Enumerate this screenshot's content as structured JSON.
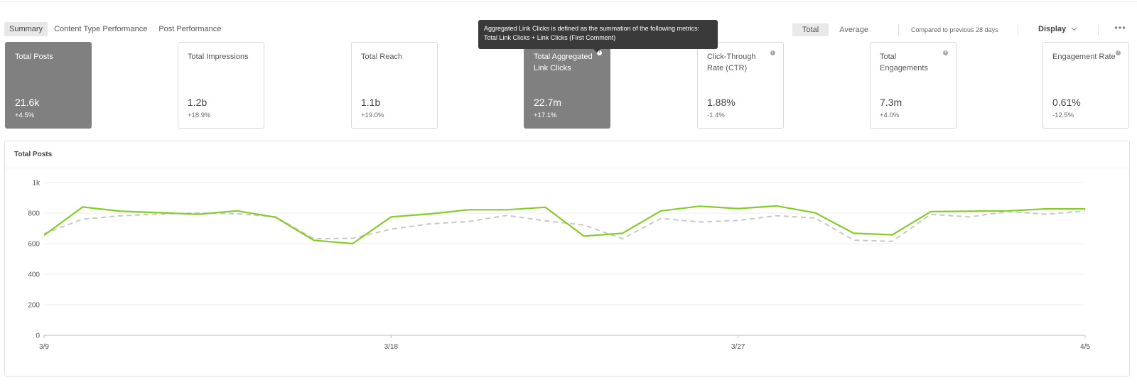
{
  "view_tabs": [
    "Summary",
    "Content Type Performance",
    "Post Performance"
  ],
  "controls": {
    "total_label": "Total",
    "average_label": "Average",
    "compare_label": "Compared to previous 28 days",
    "display_label": "Display"
  },
  "tooltip": {
    "line1": "Aggregated Link Clicks is defined as the summation of the following metrics:",
    "line2": "Total Link Clicks + Link Clicks (First Comment)"
  },
  "cards": [
    {
      "label": "Total Posts",
      "value": "21.6k",
      "change": "+4.5%",
      "selected": true,
      "info": false
    },
    {
      "label": "Total Impressions",
      "value": "1.2b",
      "change": "+18.9%",
      "selected": false,
      "info": false
    },
    {
      "label": "Total Reach",
      "value": "1.1b",
      "change": "+19.0%",
      "selected": false,
      "info": false
    },
    {
      "label": "Total Aggregated Link Clicks",
      "value": "22.7m",
      "change": "+17.1%",
      "selected": true,
      "info": true
    },
    {
      "label": "Click-Through Rate (CTR)",
      "value": "1.88%",
      "change": "-1.4%",
      "selected": false,
      "info": true
    },
    {
      "label": "Total Engagements",
      "value": "7.3m",
      "change": "+4.0%",
      "selected": false,
      "info": true
    },
    {
      "label": "Engagement Rate",
      "value": "0.61%",
      "change": "-12.5%",
      "selected": false,
      "info": true
    }
  ],
  "chart_title": "Total Posts",
  "colors": {
    "current": "#86cc27",
    "previous": "#c8c8c8",
    "selected_card": "#808080"
  },
  "chart_data": {
    "type": "line",
    "title": "Total Posts",
    "x": [
      "3/9",
      "3/10",
      "3/11",
      "3/12",
      "3/13",
      "3/14",
      "3/15",
      "3/16",
      "3/17",
      "3/18",
      "3/19",
      "3/20",
      "3/21",
      "3/22",
      "3/23",
      "3/24",
      "3/25",
      "3/26",
      "3/27",
      "3/28",
      "3/29",
      "3/30",
      "3/31",
      "4/1",
      "4/2",
      "4/3",
      "4/4",
      "4/5"
    ],
    "x_tick_labels": [
      "3/9",
      "3/18",
      "3/27",
      "4/5"
    ],
    "y_ticks": [
      "0",
      "200",
      "400",
      "600",
      "800",
      "1k"
    ],
    "ylim": [
      0,
      1000
    ],
    "grid": true,
    "series": [
      {
        "values": [
          655,
          840,
          812,
          803,
          792,
          815,
          773,
          622,
          600,
          775,
          795,
          822,
          822,
          838,
          650,
          668,
          815,
          845,
          830,
          847,
          802,
          668,
          658,
          810,
          812,
          815,
          828,
          828
        ],
        "style": "solid"
      },
      {
        "values": [
          665,
          760,
          783,
          793,
          802,
          795,
          776,
          632,
          635,
          695,
          730,
          745,
          785,
          750,
          722,
          632,
          765,
          742,
          752,
          783,
          768,
          623,
          615,
          792,
          775,
          810,
          792,
          815
        ],
        "style": "dashed"
      }
    ]
  }
}
